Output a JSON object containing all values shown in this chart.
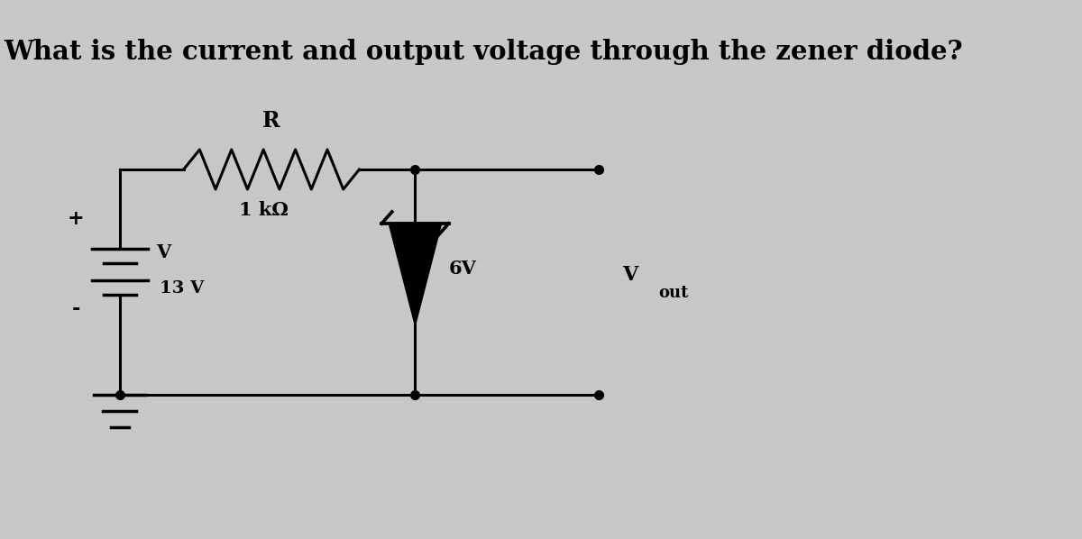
{
  "title": "What is the current and output voltage through the zener diode?",
  "title_fontsize": 21,
  "background_color": "#c8c8c8",
  "line_color": "#000000",
  "circuit": {
    "resistor_label": "R",
    "resistor_value": "1 kΩ",
    "zener_label": "6V",
    "vout_label": "V",
    "vout_sub": "out",
    "voltage_label": "V",
    "voltage_value": "13 V",
    "plus_label": "+",
    "minus_label": "-"
  }
}
